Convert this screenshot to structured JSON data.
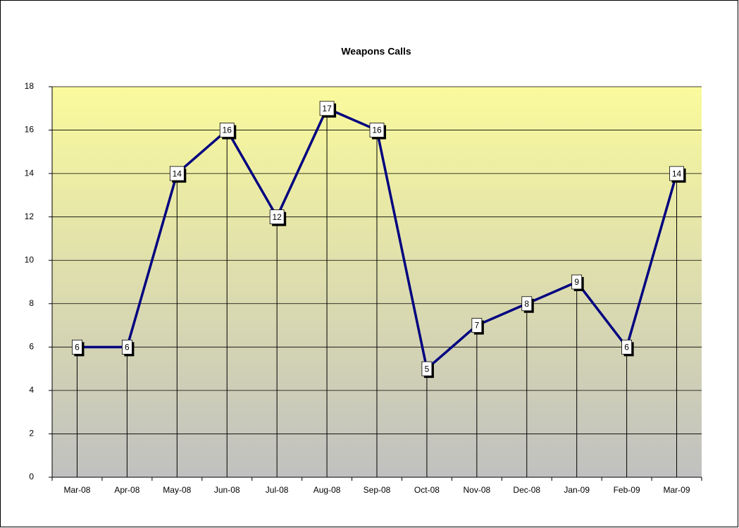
{
  "chart_data": {
    "type": "line",
    "title": "Weapons Calls",
    "categories": [
      "Mar-08",
      "Apr-08",
      "May-08",
      "Jun-08",
      "Jul-08",
      "Aug-08",
      "Sep-08",
      "Oct-08",
      "Nov-08",
      "Dec-08",
      "Jan-09",
      "Feb-09",
      "Mar-09"
    ],
    "series": [
      {
        "name": "Weapons Calls",
        "color": "#000080",
        "values": [
          6,
          6,
          14,
          16,
          12,
          17,
          16,
          5,
          7,
          8,
          9,
          6,
          14
        ]
      }
    ],
    "ylim": [
      0,
      18
    ],
    "yticks": [
      0,
      2,
      4,
      6,
      8,
      10,
      12,
      14,
      16,
      18
    ],
    "grid": true,
    "drop_lines": true,
    "data_labels": true
  }
}
